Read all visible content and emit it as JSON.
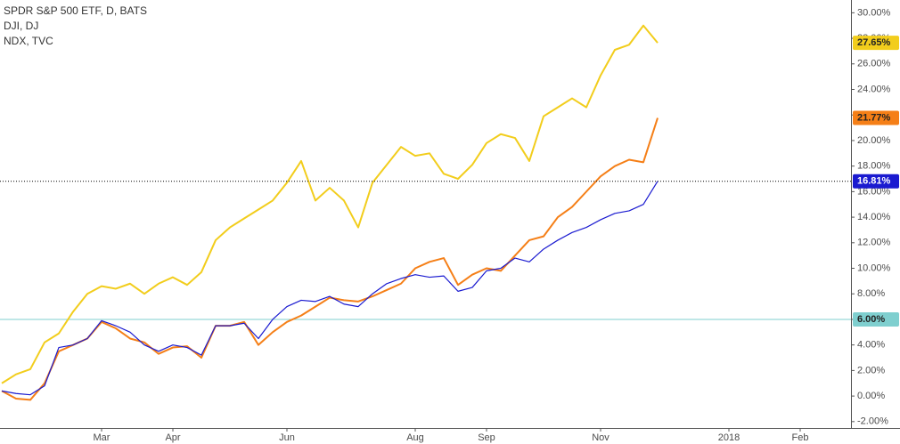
{
  "chart_data": {
    "type": "line",
    "legend": [
      "SPDR S&P 500 ETF, D, BATS",
      "DJI, DJ",
      "NDX, TVC"
    ],
    "categories": [
      null,
      null,
      null,
      null,
      null,
      null,
      null,
      "Mar",
      null,
      null,
      null,
      null,
      "Apr",
      null,
      null,
      null,
      null,
      null,
      null,
      null,
      "Jun",
      null,
      null,
      null,
      null,
      null,
      null,
      null,
      null,
      "Aug",
      null,
      null,
      null,
      null,
      "Sep",
      null,
      null,
      null,
      null,
      null,
      null,
      null,
      "Nov",
      null,
      null,
      null,
      null,
      null,
      null,
      null,
      null,
      "2018",
      null,
      null,
      null,
      null,
      "Feb",
      null,
      null,
      null
    ],
    "series": [
      {
        "name": "NDX, TVC",
        "color": "#f2cd1c",
        "values": [
          1.0,
          1.7,
          2.1,
          4.2,
          4.9,
          6.6,
          8.0,
          8.6,
          8.4,
          8.8,
          8.0,
          8.8,
          9.3,
          8.7,
          9.7,
          12.2,
          13.2,
          13.9,
          14.6,
          15.3,
          16.7,
          18.4,
          15.3,
          16.3,
          15.3,
          13.2,
          16.7,
          18.1,
          19.5,
          18.8,
          19.0,
          17.4,
          17.0,
          18.1,
          19.8,
          20.5,
          20.2,
          18.4,
          21.9,
          22.6,
          23.3,
          22.6,
          25.1,
          27.1,
          27.5,
          29.0,
          27.65,
          null,
          null,
          null,
          null,
          null,
          null,
          null,
          null,
          null,
          null,
          null,
          null,
          null
        ],
        "value_labels": [
          null,
          null,
          null,
          null,
          null,
          null,
          null,
          null,
          null,
          null,
          null,
          null,
          null,
          null,
          null,
          null,
          null,
          null,
          null,
          null,
          null,
          null,
          null,
          null,
          null,
          null,
          null,
          null,
          null,
          null,
          null,
          null,
          null,
          null,
          null,
          null,
          null,
          null,
          null,
          null,
          null,
          null,
          null,
          null,
          null,
          null,
          "27.65%",
          null,
          null,
          null,
          null,
          null,
          null,
          null,
          null,
          null,
          null,
          null,
          null,
          null
        ]
      },
      {
        "name": "DJI, DJ",
        "color": "#f57f17",
        "values": [
          0.4,
          -0.2,
          -0.3,
          1.0,
          3.5,
          4.0,
          4.5,
          5.8,
          5.3,
          4.5,
          4.2,
          3.3,
          3.8,
          3.9,
          3.0,
          5.5,
          5.5,
          5.8,
          4.0,
          5.0,
          5.8,
          6.3,
          7.0,
          7.7,
          7.5,
          7.4,
          7.8,
          8.3,
          8.8,
          10.0,
          10.5,
          10.8,
          8.7,
          9.5,
          10.0,
          9.8,
          11.0,
          12.2,
          12.5,
          14.0,
          14.8,
          16.0,
          17.2,
          18.0,
          18.5,
          18.3,
          21.77,
          null,
          null,
          null,
          null,
          null,
          null,
          null,
          null,
          null,
          null,
          null,
          null,
          null
        ],
        "value_labels": [
          null,
          null,
          null,
          null,
          null,
          null,
          null,
          null,
          null,
          null,
          null,
          null,
          null,
          null,
          null,
          null,
          null,
          null,
          null,
          null,
          null,
          null,
          null,
          null,
          null,
          null,
          null,
          null,
          null,
          null,
          null,
          null,
          null,
          null,
          null,
          null,
          null,
          null,
          null,
          null,
          null,
          null,
          null,
          null,
          null,
          null,
          "21.77%",
          null,
          null,
          null,
          null,
          null,
          null,
          null,
          null,
          null,
          null,
          null,
          null,
          null
        ]
      },
      {
        "name": "SPDR S&P 500 ETF, D, BATS",
        "color": "#1a1ad0",
        "price_line": true,
        "values": [
          0.4,
          0.2,
          0.1,
          0.8,
          3.8,
          4.0,
          4.5,
          5.9,
          5.5,
          5.0,
          4.0,
          3.5,
          4.0,
          3.8,
          3.2,
          5.5,
          5.5,
          5.7,
          4.5,
          6.0,
          7.0,
          7.5,
          7.4,
          7.8,
          7.2,
          7.0,
          8.0,
          8.8,
          9.2,
          9.5,
          9.3,
          9.4,
          8.2,
          8.5,
          9.8,
          10.0,
          10.8,
          10.5,
          11.5,
          12.2,
          12.8,
          13.2,
          13.8,
          14.3,
          14.5,
          15.0,
          16.81,
          null,
          null,
          null,
          null,
          null,
          null,
          null,
          null,
          null,
          null,
          null,
          null,
          null
        ],
        "value_labels": [
          null,
          null,
          null,
          null,
          null,
          null,
          null,
          null,
          null,
          null,
          null,
          null,
          null,
          null,
          null,
          null,
          null,
          null,
          null,
          null,
          null,
          null,
          null,
          null,
          null,
          null,
          null,
          null,
          null,
          null,
          null,
          null,
          null,
          null,
          null,
          null,
          null,
          null,
          null,
          null,
          null,
          null,
          null,
          null,
          null,
          null,
          "16.81%",
          null,
          null,
          null,
          null,
          null,
          null,
          null,
          null,
          null,
          null,
          null,
          null,
          null
        ]
      }
    ],
    "hline": {
      "value": 6,
      "label": "6.00%",
      "color": "#7fcfcf"
    },
    "ylim": [
      -2.5,
      31
    ],
    "yticks": [
      {
        "value": -2,
        "label": "-2.00%"
      },
      {
        "value": 0,
        "label": "0.00%"
      },
      {
        "value": 2,
        "label": "2.00%"
      },
      {
        "value": 4,
        "label": "4.00%"
      },
      {
        "value": 6,
        "label": "6.00%"
      },
      {
        "value": 8,
        "label": "8.00%"
      },
      {
        "value": 10,
        "label": "10.00%"
      },
      {
        "value": 12,
        "label": "12.00%"
      },
      {
        "value": 14,
        "label": "14.00%"
      },
      {
        "value": 16,
        "label": "16.00%"
      },
      {
        "value": 18,
        "label": "18.00%"
      },
      {
        "value": 20,
        "label": "20.00%"
      },
      {
        "value": 22,
        "label": "22.00%"
      },
      {
        "value": 24,
        "label": "24.00%"
      },
      {
        "value": 26,
        "label": "26.00%"
      },
      {
        "value": 28,
        "label": "28.00%"
      },
      {
        "value": 30,
        "label": "30.00%"
      }
    ],
    "grid": false
  }
}
